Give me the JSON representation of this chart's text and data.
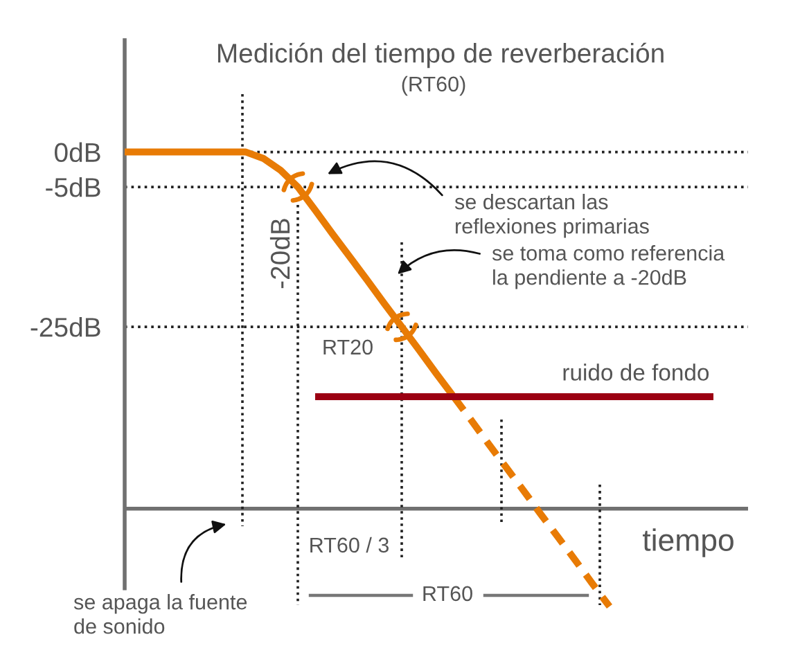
{
  "chart_data": {
    "type": "line",
    "title": "Medición del tiempo de reverberación",
    "subtitle": "(RT60)",
    "xlabel": "tiempo",
    "categories": [
      null,
      null,
      null,
      null,
      null,
      null,
      null,
      null,
      null,
      null,
      null,
      null,
      null,
      null,
      null,
      null,
      null,
      null,
      null,
      null,
      null,
      null,
      null,
      null,
      null,
      null,
      null,
      null,
      null,
      null,
      null,
      null,
      null,
      null,
      null,
      null,
      null
    ],
    "series": [
      {
        "color": "#e87b05",
        "values": [
          0,
          0,
          0,
          0,
          0,
          0,
          0,
          0,
          -0.9,
          -2.6,
          -5,
          -8.3,
          -11.7,
          -15,
          -18.3,
          -21.7,
          -25,
          -28.3,
          -31.7,
          -35,
          null,
          null,
          null,
          null,
          null,
          null,
          null,
          null,
          null,
          null,
          null,
          null,
          null,
          null,
          null,
          null,
          null
        ]
      },
      {
        "color": "#e87b05",
        "line_style": "dashed",
        "values": [
          null,
          null,
          null,
          null,
          null,
          null,
          null,
          null,
          null,
          null,
          null,
          null,
          null,
          null,
          null,
          null,
          null,
          null,
          null,
          -35,
          -38.3,
          -41.7,
          -45,
          -48.3,
          -51.7,
          -55,
          -58.3,
          -61.7,
          -65,
          null,
          null,
          null,
          null,
          null,
          null,
          null,
          null
        ]
      },
      {
        "name": "ruido de fondo",
        "color": "#9b0012",
        "values": [
          null,
          null,
          null,
          null,
          null,
          null,
          null,
          null,
          null,
          null,
          null,
          -35,
          -35,
          -35,
          -35,
          -35,
          -35,
          -35,
          -35,
          -35,
          -35,
          -35,
          -35,
          -35,
          -35,
          -35,
          -35,
          -35,
          -35,
          -35,
          -35,
          -35,
          -35,
          -35,
          -35,
          null,
          null
        ]
      }
    ],
    "ylim": [
      -68,
      16
    ],
    "yticks": [
      {
        "value": 0,
        "label": "0dB"
      },
      {
        "value": -5,
        "label": "-5dB"
      },
      {
        "value": -25,
        "label": "-25dB"
      }
    ],
    "grid": "y",
    "tick_labels": "y",
    "ref_lines": [
      {
        "axis": "y",
        "value": -51,
        "color": "#707070"
      }
    ],
    "annotations": [
      "se descartan las\nreflexiones primarias",
      "se toma como referencia\nla pendiente a -20dB",
      "se apaga la fuente\nde sonido",
      "-20dB",
      "RT20",
      "RT60 / 3",
      "RT60"
    ]
  }
}
